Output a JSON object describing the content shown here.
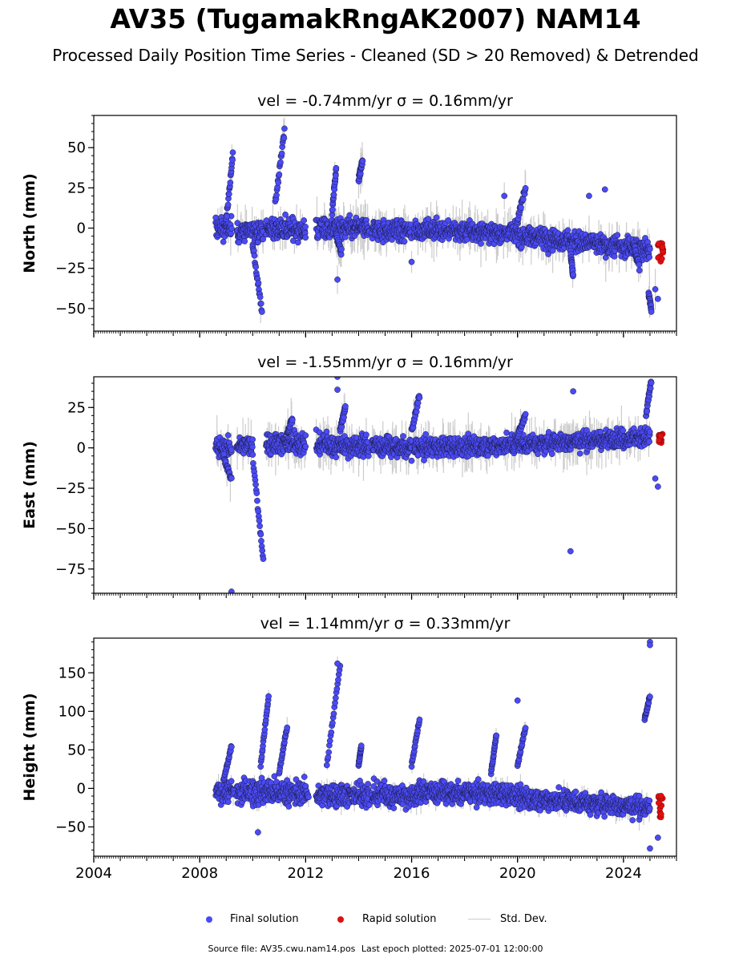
{
  "title": "AV35 (TugamakRngAK2007) NAM14",
  "subtitle": "Processed Daily Position Time Series - Cleaned (SD > 20 Removed) & Detrended",
  "legend": {
    "final": "Final solution",
    "rapid": "Rapid solution",
    "std": "Std. Dev."
  },
  "footer": {
    "source": "Source file: AV35.cwu.nam14.pos",
    "last_epoch": "Last epoch plotted: 2025-07-01 12:00:00"
  },
  "colors": {
    "final": "#4a4af5",
    "rapid": "#e01010",
    "std": "#cccccc",
    "edge": "#1a1a40"
  },
  "chart_data": [
    {
      "type": "scatter",
      "panel_title": "vel = -0.74mm/yr   σ = 0.16mm/yr",
      "ylabel": "North (mm)",
      "xlim": [
        2004.0,
        2026.0
      ],
      "ylim": [
        -64,
        70
      ],
      "yticks": [
        -50,
        -25,
        0,
        25,
        50
      ],
      "xticks": [
        2004,
        2008,
        2012,
        2016,
        2020,
        2024
      ],
      "segments": [
        {
          "x": [
            2008.6,
            2009.2
          ],
          "base": [
            0,
            0
          ],
          "scatter": 4
        },
        {
          "x": [
            2009.4,
            2010.4
          ],
          "base": [
            -2,
            -2
          ],
          "scatter": 4
        },
        {
          "x": [
            2010.5,
            2012.0
          ],
          "base": [
            -1,
            -1
          ],
          "scatter": 4
        },
        {
          "x": [
            2012.4,
            2014.4
          ],
          "base": [
            0,
            0
          ],
          "scatter": 4
        },
        {
          "x": [
            2014.5,
            2016.0
          ],
          "base": [
            -1,
            -2
          ],
          "scatter": 4
        },
        {
          "x": [
            2016.1,
            2020.0
          ],
          "base": [
            -1,
            -3
          ],
          "scatter": 3.5
        },
        {
          "x": [
            2020.0,
            2025.0
          ],
          "base": [
            -4,
            -14
          ],
          "scatter": 4
        }
      ],
      "excursions": [
        {
          "x": [
            2009.0,
            2009.25
          ],
          "y": [
            5,
            45
          ]
        },
        {
          "x": [
            2010.0,
            2010.35
          ],
          "y": [
            -10,
            -52
          ]
        },
        {
          "x": [
            2010.85,
            2011.2
          ],
          "y": [
            15,
            60
          ]
        },
        {
          "x": [
            2013.0,
            2013.15
          ],
          "y": [
            10,
            37
          ]
        },
        {
          "x": [
            2013.15,
            2013.35
          ],
          "y": [
            -5,
            -15
          ]
        },
        {
          "x": [
            2014.0,
            2014.15
          ],
          "y": [
            30,
            42
          ]
        },
        {
          "x": [
            2020.0,
            2020.3
          ],
          "y": [
            5,
            25
          ]
        },
        {
          "x": [
            2022.0,
            2022.1
          ],
          "y": [
            -15,
            -30
          ]
        },
        {
          "x": [
            2024.4,
            2024.6
          ],
          "y": [
            -10,
            -25
          ]
        },
        {
          "x": [
            2024.95,
            2025.05
          ],
          "y": [
            -40,
            -50
          ]
        }
      ],
      "outliers": [
        {
          "x": 2013.2,
          "y": -32
        },
        {
          "x": 2016.0,
          "y": -21
        },
        {
          "x": 2019.5,
          "y": 20
        },
        {
          "x": 2022.7,
          "y": 20
        },
        {
          "x": 2023.3,
          "y": 24
        },
        {
          "x": 2025.3,
          "y": -44
        },
        {
          "x": 2025.2,
          "y": -38
        }
      ],
      "rapid": {
        "x": [
          2025.3,
          2025.5
        ],
        "y": [
          -21,
          -9
        ]
      }
    },
    {
      "type": "scatter",
      "panel_title": "vel = -1.55mm/yr   σ = 0.16mm/yr",
      "ylabel": "East (mm)",
      "xlim": [
        2004.0,
        2026.0
      ],
      "ylim": [
        -90,
        44
      ],
      "yticks": [
        -75,
        -50,
        -25,
        0,
        25
      ],
      "xticks": [
        2004,
        2008,
        2012,
        2016,
        2020,
        2024
      ],
      "segments": [
        {
          "x": [
            2008.6,
            2009.2
          ],
          "base": [
            0,
            0
          ],
          "scatter": 3.5
        },
        {
          "x": [
            2009.4,
            2010.0
          ],
          "base": [
            2,
            2
          ],
          "scatter": 3.5
        },
        {
          "x": [
            2010.5,
            2012.0
          ],
          "base": [
            3,
            3
          ],
          "scatter": 4
        },
        {
          "x": [
            2012.4,
            2014.4
          ],
          "base": [
            2,
            1
          ],
          "scatter": 4
        },
        {
          "x": [
            2014.5,
            2016.0
          ],
          "base": [
            1,
            0
          ],
          "scatter": 3.5
        },
        {
          "x": [
            2016.1,
            2020.0
          ],
          "base": [
            0,
            2
          ],
          "scatter": 3.5
        },
        {
          "x": [
            2020.0,
            2025.0
          ],
          "base": [
            2,
            7
          ],
          "scatter": 3.5
        }
      ],
      "excursions": [
        {
          "x": [
            2008.9,
            2009.2
          ],
          "y": [
            -5,
            -20
          ]
        },
        {
          "x": [
            2010.0,
            2010.4
          ],
          "y": [
            -5,
            -70
          ]
        },
        {
          "x": [
            2011.3,
            2011.5
          ],
          "y": [
            8,
            18
          ]
        },
        {
          "x": [
            2013.3,
            2013.5
          ],
          "y": [
            10,
            25
          ]
        },
        {
          "x": [
            2016.0,
            2016.3
          ],
          "y": [
            10,
            33
          ]
        },
        {
          "x": [
            2020.0,
            2020.3
          ],
          "y": [
            8,
            20
          ]
        },
        {
          "x": [
            2024.85,
            2025.05
          ],
          "y": [
            20,
            42
          ]
        }
      ],
      "outliers": [
        {
          "x": 2013.2,
          "y": 44
        },
        {
          "x": 2013.2,
          "y": 36
        },
        {
          "x": 2009.2,
          "y": -89
        },
        {
          "x": 2022.0,
          "y": -64
        },
        {
          "x": 2022.1,
          "y": 35
        },
        {
          "x": 2025.3,
          "y": -24
        },
        {
          "x": 2025.2,
          "y": -19
        },
        {
          "x": 2016.0,
          "y": -8
        }
      ],
      "rapid": {
        "x": [
          2025.3,
          2025.5
        ],
        "y": [
          3,
          9
        ]
      }
    },
    {
      "type": "scatter",
      "panel_title": "vel = 1.14mm/yr   σ = 0.33mm/yr",
      "ylabel": "Height (mm)",
      "xlim": [
        2004.0,
        2026.0
      ],
      "ylim": [
        -88,
        195
      ],
      "yticks": [
        -50,
        0,
        50,
        100,
        150
      ],
      "xticks": [
        2004,
        2008,
        2012,
        2016,
        2020,
        2024
      ],
      "segments": [
        {
          "x": [
            2008.6,
            2009.3
          ],
          "base": [
            -5,
            -5
          ],
          "scatter": 8
        },
        {
          "x": [
            2009.4,
            2010.6
          ],
          "base": [
            -5,
            -5
          ],
          "scatter": 10
        },
        {
          "x": [
            2010.6,
            2012.1
          ],
          "base": [
            -5,
            -5
          ],
          "scatter": 9
        },
        {
          "x": [
            2012.4,
            2014.4
          ],
          "base": [
            -8,
            -8
          ],
          "scatter": 9
        },
        {
          "x": [
            2014.5,
            2016.2
          ],
          "base": [
            -8,
            -10
          ],
          "scatter": 9
        },
        {
          "x": [
            2016.2,
            2020.0
          ],
          "base": [
            -5,
            -8
          ],
          "scatter": 8
        },
        {
          "x": [
            2020.0,
            2025.0
          ],
          "base": [
            -12,
            -25
          ],
          "scatter": 8
        }
      ],
      "excursions": [
        {
          "x": [
            2008.9,
            2009.2
          ],
          "y": [
            10,
            55
          ]
        },
        {
          "x": [
            2010.3,
            2010.6
          ],
          "y": [
            30,
            120
          ]
        },
        {
          "x": [
            2011.0,
            2011.3
          ],
          "y": [
            20,
            80
          ]
        },
        {
          "x": [
            2012.8,
            2013.3
          ],
          "y": [
            30,
            160
          ]
        },
        {
          "x": [
            2014.0,
            2014.1
          ],
          "y": [
            30,
            55
          ]
        },
        {
          "x": [
            2016.0,
            2016.3
          ],
          "y": [
            30,
            90
          ]
        },
        {
          "x": [
            2019.0,
            2019.2
          ],
          "y": [
            20,
            70
          ]
        },
        {
          "x": [
            2020.0,
            2020.3
          ],
          "y": [
            30,
            80
          ]
        },
        {
          "x": [
            2024.8,
            2025.0
          ],
          "y": [
            90,
            120
          ]
        }
      ],
      "outliers": [
        {
          "x": 2020.0,
          "y": 114
        },
        {
          "x": 2025.0,
          "y": 190
        },
        {
          "x": 2025.0,
          "y": 186
        },
        {
          "x": 2025.0,
          "y": -78
        },
        {
          "x": 2025.3,
          "y": -64
        },
        {
          "x": 2013.2,
          "y": 162
        },
        {
          "x": 2010.2,
          "y": -57
        }
      ],
      "rapid": {
        "x": [
          2025.3,
          2025.5
        ],
        "y": [
          -38,
          -8
        ]
      }
    }
  ]
}
